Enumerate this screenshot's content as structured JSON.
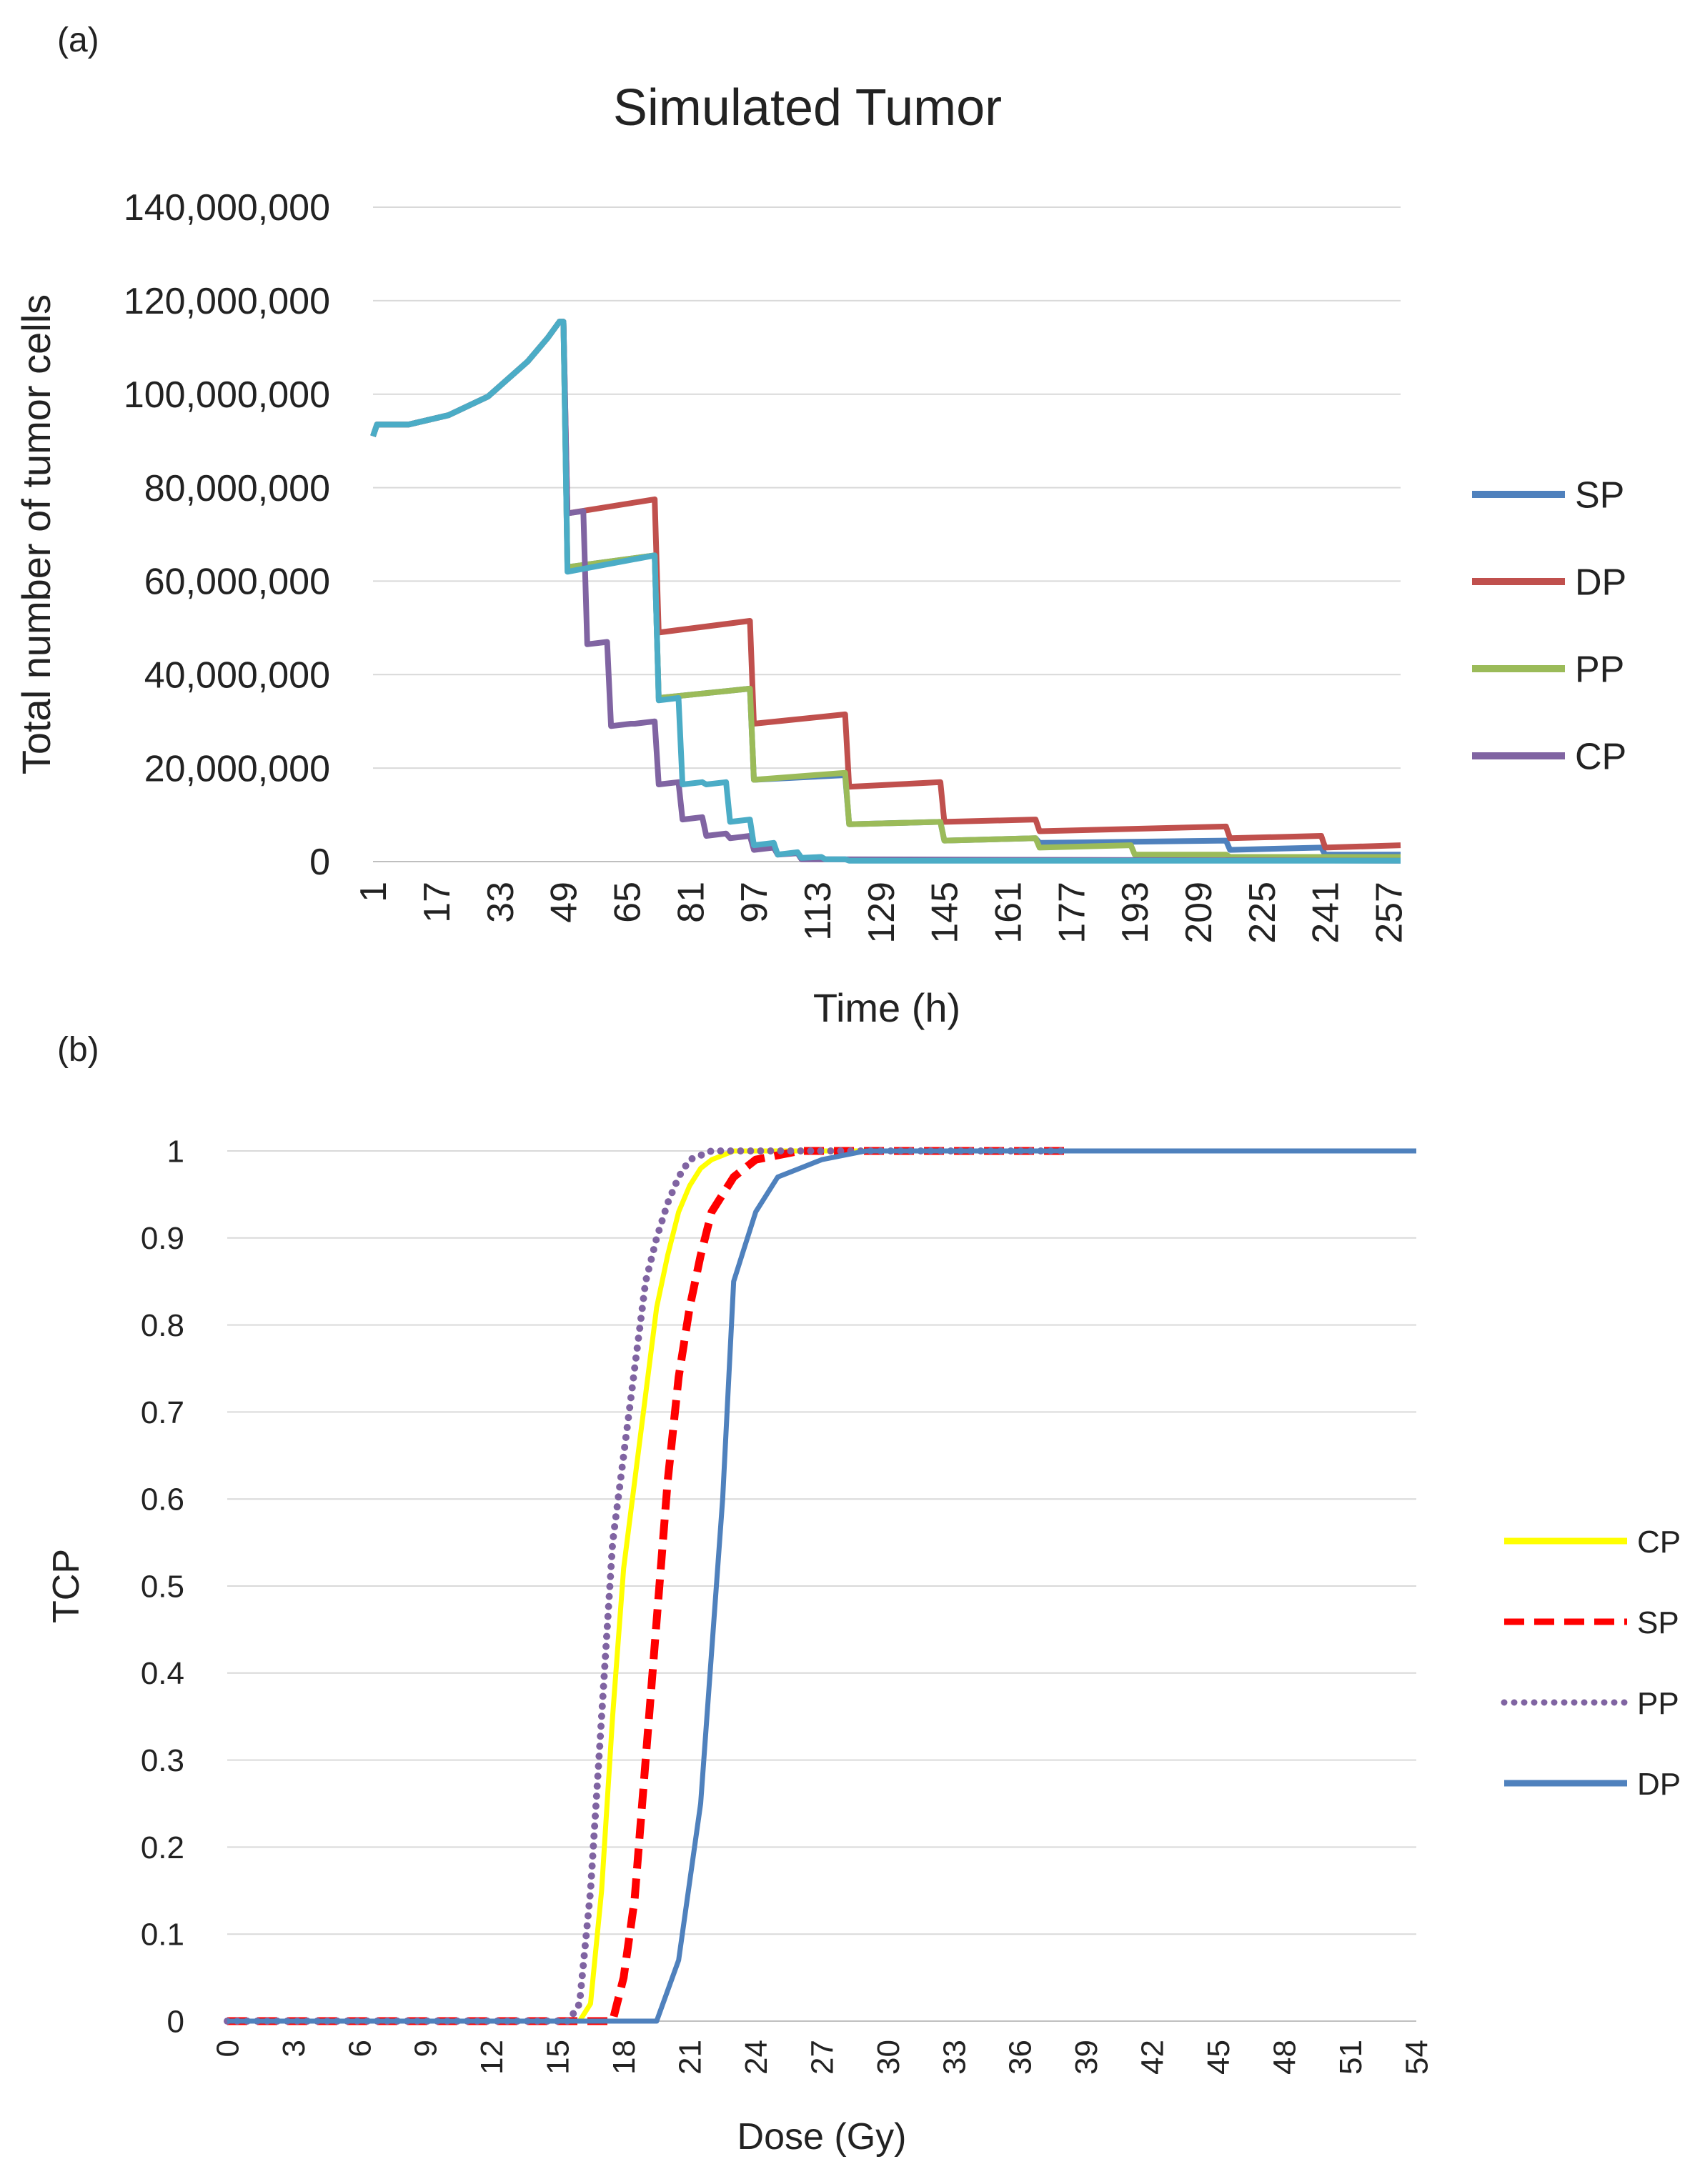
{
  "panels": {
    "a_label": "(a)",
    "b_label": "(b)"
  },
  "colors": {
    "SP_a": "#4f81bd",
    "DP_a": "#c0504d",
    "PP_a": "#9bbb59",
    "CP_a": "#8064a2",
    "extra_a": "#4bacc6",
    "CP_b": "#ffff00",
    "SP_b": "#ff0000",
    "PP_b": "#8064a2",
    "DP_b": "#4f81bd",
    "grid": "#d9d9d9",
    "axis": "#bfbfbf"
  },
  "chart_data": [
    {
      "type": "line",
      "title": "Simulated Tumor",
      "xlabel": "Time (h)",
      "ylabel": "Total number of tumor cells",
      "xlim": [
        1,
        260
      ],
      "ylim": [
        0,
        140000000
      ],
      "yticks": [
        0,
        20000000,
        40000000,
        60000000,
        80000000,
        100000000,
        120000000,
        140000000
      ],
      "ytick_labels": [
        "0",
        "20,000,000",
        "40,000,000",
        "60,000,000",
        "80,000,000",
        "100,000,000",
        "120,000,000",
        "140,000,000"
      ],
      "xticks": [
        1,
        17,
        33,
        49,
        65,
        81,
        97,
        113,
        129,
        145,
        161,
        177,
        193,
        209,
        225,
        241,
        257
      ],
      "xtick_labels": [
        "1",
        "17",
        "33",
        "49",
        "65",
        "81",
        "97",
        "113",
        "129",
        "145",
        "161",
        "177",
        "193",
        "209",
        "225",
        "241",
        "257"
      ],
      "grid": true,
      "legend": [
        "SP",
        "DP",
        "PP",
        "CP"
      ],
      "legend_position": "right",
      "series": [
        {
          "name": "SP",
          "color_key": "SP_a",
          "in_legend": true,
          "x": [
            1,
            2,
            10,
            20,
            30,
            40,
            45,
            48,
            49,
            50,
            72,
            73,
            96,
            97,
            120,
            121,
            144,
            145,
            168,
            169,
            216,
            217,
            240,
            241,
            260
          ],
          "y": [
            91000000,
            93500000,
            93500000,
            95500000,
            99500000,
            107000000,
            112000000,
            115500000,
            115500000,
            63000000,
            65500000,
            35000000,
            37000000,
            17500000,
            18500000,
            8000000,
            8500000,
            4500000,
            5000000,
            4000000,
            4500000,
            2500000,
            3000000,
            1500000,
            1500000
          ]
        },
        {
          "name": "DP",
          "color_key": "DP_a",
          "in_legend": true,
          "x": [
            1,
            2,
            10,
            20,
            30,
            40,
            45,
            48,
            49,
            50,
            72,
            73,
            96,
            97,
            120,
            121,
            144,
            145,
            168,
            169,
            216,
            217,
            240,
            241,
            260
          ],
          "y": [
            91000000,
            93500000,
            93500000,
            95500000,
            99500000,
            107000000,
            112000000,
            115500000,
            115500000,
            74500000,
            77500000,
            49000000,
            51500000,
            29500000,
            31500000,
            16000000,
            17000000,
            8500000,
            9000000,
            6500000,
            7500000,
            5000000,
            5500000,
            3000000,
            3500000
          ]
        },
        {
          "name": "PP",
          "color_key": "PP_a",
          "in_legend": true,
          "x": [
            1,
            2,
            10,
            20,
            30,
            40,
            45,
            48,
            49,
            50,
            72,
            73,
            96,
            97,
            120,
            121,
            144,
            145,
            168,
            169,
            192,
            193,
            216,
            217,
            260
          ],
          "y": [
            91000000,
            93500000,
            93500000,
            95500000,
            99500000,
            107000000,
            112000000,
            115500000,
            115500000,
            63000000,
            65500000,
            35000000,
            37000000,
            17500000,
            19000000,
            8000000,
            8500000,
            4500000,
            5000000,
            3000000,
            3500000,
            1500000,
            1500000,
            1000000,
            1000000
          ]
        },
        {
          "name": "CP",
          "color_key": "CP_a",
          "in_legend": true,
          "x": [
            1,
            2,
            10,
            20,
            30,
            40,
            45,
            48,
            49,
            50,
            54,
            55,
            60,
            61,
            66,
            67,
            72,
            73,
            78,
            79,
            84,
            85,
            90,
            91,
            96,
            97,
            102,
            103,
            108,
            109,
            260
          ],
          "y": [
            91000000,
            93500000,
            93500000,
            95500000,
            99500000,
            107000000,
            112000000,
            115500000,
            115500000,
            74500000,
            75000000,
            46500000,
            47000000,
            29000000,
            29500000,
            29500000,
            30000000,
            16500000,
            17000000,
            9000000,
            9500000,
            5500000,
            6000000,
            5000000,
            5500000,
            2500000,
            3000000,
            1500000,
            1800000,
            500000,
            200000
          ]
        },
        {
          "name": "",
          "color_key": "extra_a",
          "in_legend": false,
          "x": [
            1,
            2,
            10,
            20,
            30,
            40,
            45,
            48,
            49,
            50,
            72,
            73,
            78,
            79,
            84,
            85,
            90,
            91,
            96,
            97,
            102,
            103,
            108,
            109,
            114,
            115,
            120,
            121,
            260
          ],
          "y": [
            91000000,
            93500000,
            93500000,
            95500000,
            99500000,
            107000000,
            112000000,
            115500000,
            115500000,
            62000000,
            65500000,
            34500000,
            35000000,
            16500000,
            17000000,
            16500000,
            17000000,
            8500000,
            9000000,
            3500000,
            4000000,
            1500000,
            2000000,
            800000,
            1000000,
            500000,
            500000,
            200000,
            200000
          ]
        }
      ]
    },
    {
      "type": "line",
      "title": "",
      "xlabel": "Dose (Gy)",
      "ylabel": "TCP",
      "xlim": [
        0,
        54
      ],
      "ylim": [
        0,
        1
      ],
      "yticks": [
        0,
        0.1,
        0.2,
        0.3,
        0.4,
        0.5,
        0.6,
        0.7,
        0.8,
        0.9,
        1
      ],
      "ytick_labels": [
        "0",
        "0.1",
        "0.2",
        "0.3",
        "0.4",
        "0.5",
        "0.6",
        "0.7",
        "0.8",
        "0.9",
        "1"
      ],
      "xticks": [
        0,
        3,
        6,
        9,
        12,
        15,
        18,
        21,
        24,
        27,
        30,
        33,
        36,
        39,
        42,
        45,
        48,
        51,
        54
      ],
      "xtick_labels": [
        "0",
        "3",
        "6",
        "9",
        "12",
        "15",
        "18",
        "21",
        "24",
        "27",
        "30",
        "33",
        "36",
        "39",
        "42",
        "45",
        "48",
        "51",
        "54"
      ],
      "grid": true,
      "legend": [
        "CP",
        "SP",
        "PP",
        "DP"
      ],
      "legend_position": "right",
      "series": [
        {
          "name": "CP",
          "color_key": "CP_b",
          "style": "solid",
          "x": [
            0,
            16,
            16.5,
            17,
            17.5,
            18,
            18.5,
            19,
            19.5,
            20,
            20.5,
            21,
            21.5,
            22,
            23,
            24,
            38
          ],
          "y": [
            0,
            0,
            0.02,
            0.15,
            0.35,
            0.52,
            0.62,
            0.72,
            0.82,
            0.88,
            0.93,
            0.96,
            0.98,
            0.99,
            1,
            1,
            1
          ]
        },
        {
          "name": "SP",
          "color_key": "SP_b",
          "style": "dashed",
          "x": [
            0,
            17.5,
            18,
            18.5,
            19,
            19.5,
            20,
            20.5,
            21,
            21.5,
            22,
            23,
            24,
            25,
            26,
            27,
            38
          ],
          "y": [
            0,
            0,
            0.05,
            0.14,
            0.3,
            0.46,
            0.62,
            0.74,
            0.82,
            0.88,
            0.93,
            0.97,
            0.99,
            0.995,
            1,
            1,
            1
          ]
        },
        {
          "name": "PP",
          "color_key": "PP_b",
          "style": "dotted",
          "x": [
            0,
            15.5,
            16,
            16.5,
            17,
            17.5,
            18,
            18.5,
            19,
            19.5,
            20,
            20.5,
            21,
            21.5,
            22,
            23,
            24,
            38
          ],
          "y": [
            0,
            0,
            0.02,
            0.15,
            0.35,
            0.55,
            0.65,
            0.75,
            0.85,
            0.9,
            0.94,
            0.97,
            0.99,
            0.995,
            1,
            1,
            1,
            1
          ]
        },
        {
          "name": "DP",
          "color_key": "DP_b",
          "style": "solid",
          "x": [
            0,
            19.5,
            20.5,
            21.5,
            22.5,
            23,
            23.5,
            24,
            25,
            26,
            27,
            28,
            29,
            30,
            54
          ],
          "y": [
            0,
            0,
            0.07,
            0.25,
            0.6,
            0.85,
            0.89,
            0.93,
            0.97,
            0.98,
            0.99,
            0.995,
            1,
            1,
            1
          ]
        }
      ]
    }
  ]
}
